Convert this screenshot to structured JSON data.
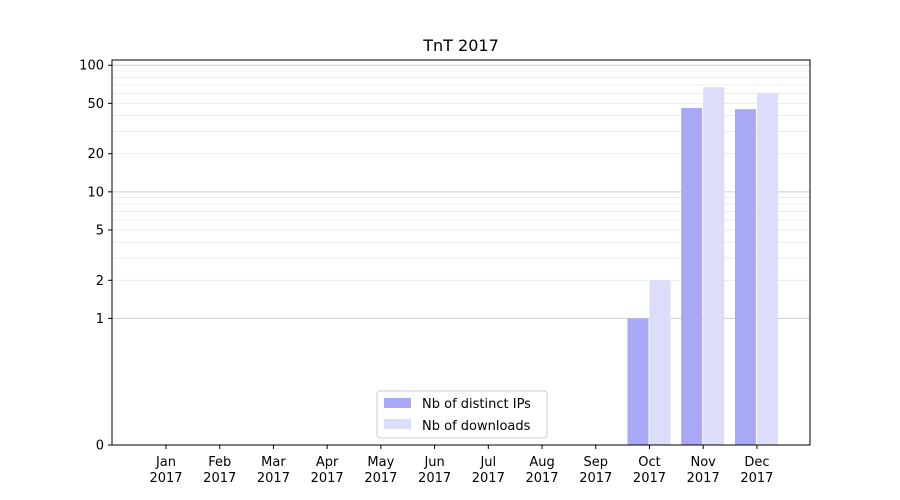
{
  "chart_data": {
    "type": "bar",
    "title": "TnT 2017",
    "xlabel": "",
    "ylabel": "",
    "yscale": "symlog",
    "ylim": [
      0,
      110
    ],
    "y_ticks": [
      "0",
      "1",
      "2",
      "5",
      "10",
      "20",
      "50",
      "100"
    ],
    "grid": "y-major-and-minor",
    "legend_position": "lower-center",
    "categories": [
      [
        "Jan",
        "2017"
      ],
      [
        "Feb",
        "2017"
      ],
      [
        "Mar",
        "2017"
      ],
      [
        "Apr",
        "2017"
      ],
      [
        "May",
        "2017"
      ],
      [
        "Jun",
        "2017"
      ],
      [
        "Jul",
        "2017"
      ],
      [
        "Aug",
        "2017"
      ],
      [
        "Sep",
        "2017"
      ],
      [
        "Oct",
        "2017"
      ],
      [
        "Nov",
        "2017"
      ],
      [
        "Dec",
        "2017"
      ]
    ],
    "series": [
      {
        "name": "Nb of distinct IPs",
        "color": "#a8a8f7",
        "values": [
          0,
          0,
          0,
          0,
          0,
          0,
          0,
          0,
          0,
          1,
          46,
          45
        ]
      },
      {
        "name": "Nb of downloads",
        "color": "#dcdcfb",
        "values": [
          0,
          0,
          0,
          0,
          0,
          0,
          0,
          0,
          0,
          2,
          67,
          60
        ]
      }
    ]
  }
}
